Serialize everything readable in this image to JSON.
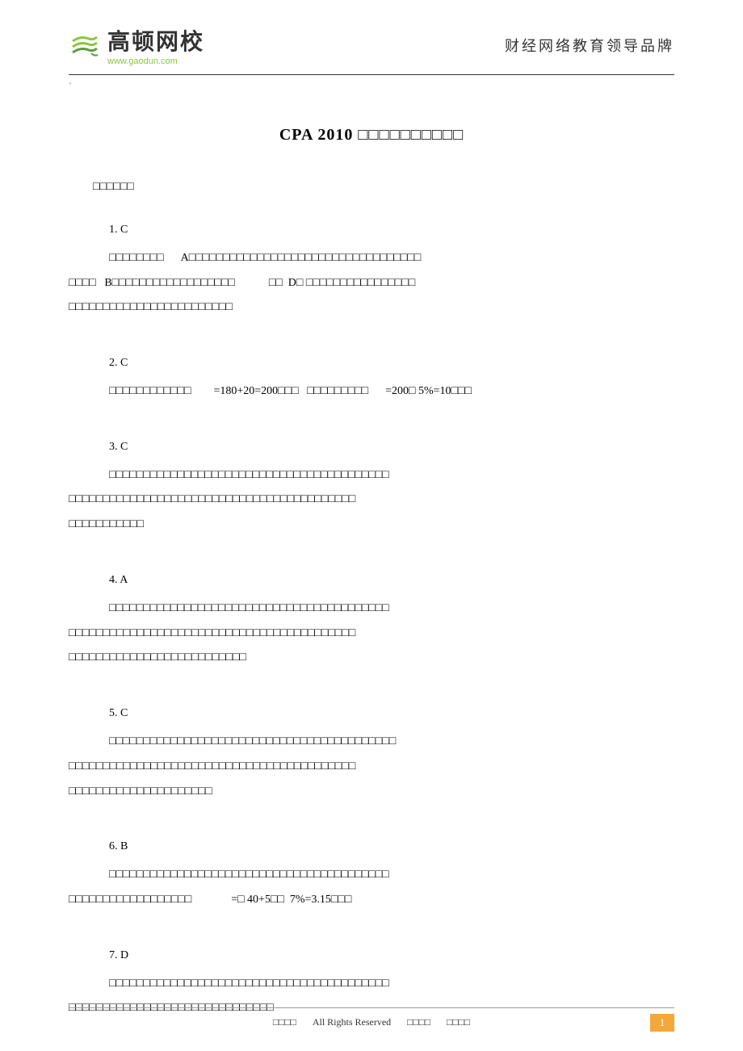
{
  "header": {
    "logo_main": "高顿网校",
    "logo_url": "www.gaodun.com",
    "slogan": "财经网络教育领导品牌"
  },
  "title": "CPA 2010 □□□□□□□□□□",
  "section_title": "□□□□□□",
  "answers": [
    {
      "num": "1. C",
      "lines": [
        "□□□□□□□□      A□□□□□□□□□□□□□□□□□□□□□□□□□□□□□□□□□□",
        "□□□□   B□□□□□□□□□□□□□□□□□□            □□  D□ □□□□□□□□□□□□□□□□",
        "□□□□□□□□□□□□□□□□□□□□□□□□"
      ]
    },
    {
      "num": "2. C",
      "lines": [
        "□□□□□□□□□□□□        =180+20=200□□□   □□□□□□□□□      =200□ 5%=10□□□"
      ]
    },
    {
      "num": "3. C",
      "lines": [
        "□□□□□□□□□□□□□□□□□□□□□□□□□□□□□□□□□□□□□□□□□",
        "□□□□□□□□□□□□□□□□□□□□□□□□□□□□□□□□□□□□□□□□□□",
        "□□□□□□□□□□□"
      ]
    },
    {
      "num": "4. A",
      "lines": [
        "□□□□□□□□□□□□□□□□□□□□□□□□□□□□□□□□□□□□□□□□□",
        "□□□□□□□□□□□□□□□□□□□□□□□□□□□□□□□□□□□□□□□□□□",
        "□□□□□□□□□□□□□□□□□□□□□□□□□□"
      ]
    },
    {
      "num": "5. C",
      "lines": [
        "□□□□□□□□□□□□□□□□□□□□□□□□□□□□□□□□□□□□□□□□□□",
        "□□□□□□□□□□□□□□□□□□□□□□□□□□□□□□□□□□□□□□□□□□",
        "□□□□□□□□□□□□□□□□□□□□□"
      ]
    },
    {
      "num": "6. B",
      "lines": [
        "□□□□□□□□□□□□□□□□□□□□□□□□□□□□□□□□□□□□□□□□□",
        "□□□□□□□□□□□□□□□□□□              =□ 40+5□□  7%=3.15□□□"
      ]
    },
    {
      "num": "7. D",
      "lines": [
        "□□□□□□□□□□□□□□□□□□□□□□□□□□□□□□□□□□□□□□□□□",
        "□□□□□□□□□□□□□□□□□□□□□□□□□□□□□□"
      ]
    }
  ],
  "footer": {
    "text1": "□□□□",
    "text2": "All Rights Reserved",
    "text3": "□□□□",
    "text4": "□□□□",
    "page_num": "1"
  },
  "colors": {
    "logo_green": "#8cc63f",
    "logo_dark_green": "#5a9e3d",
    "page_badge": "#f4a838",
    "text": "#333333",
    "border": "#999999"
  }
}
